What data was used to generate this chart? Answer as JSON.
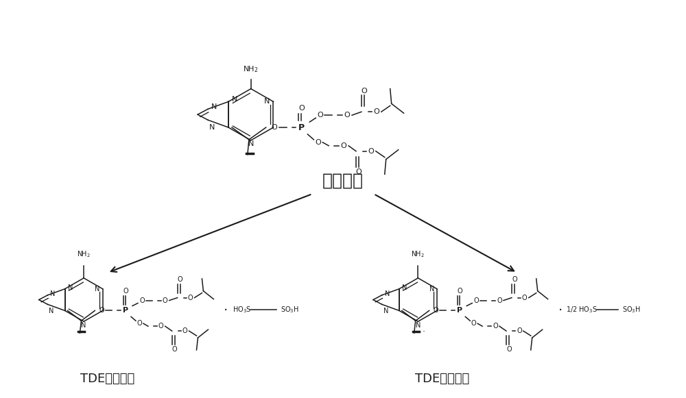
{
  "background_color": "#ffffff",
  "title_text": "替诺福韦",
  "label_left": "TDE（单盐）",
  "label_right": "TDE（半盐）",
  "fig_width": 10.0,
  "fig_height": 5.81,
  "dpi": 100,
  "line_color": "#1a1a1a",
  "text_color": "#1a1a1a",
  "font_size_label": 13,
  "font_size_title": 18,
  "font_size_atom": 7,
  "font_size_atom_sm": 6
}
